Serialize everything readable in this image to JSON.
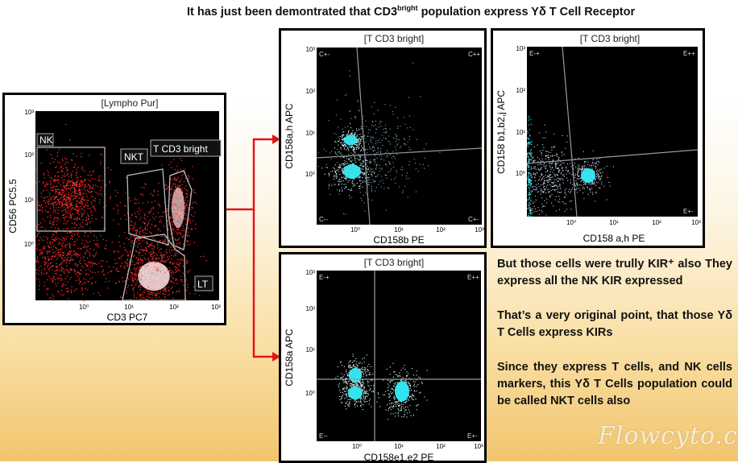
{
  "headline": {
    "pre": "It has just been demontrated that CD3",
    "sup": "bright",
    "post": " population express Yδ T Cell Receptor"
  },
  "plots": {
    "lympho": {
      "title": "[Lympho Pur]",
      "xlabel": "CD3 PC7",
      "ylabel": "CD56 PC5.5",
      "xticks": [
        "10⁰",
        "10¹",
        "10²",
        "10³"
      ],
      "yticks": [
        "10³",
        "10²",
        "10¹",
        "10⁰"
      ],
      "gates": {
        "nk": "NK",
        "nkt": "NKT",
        "tcd3": "T CD3 bright",
        "lt": "LT"
      }
    },
    "p1": {
      "title": "[T CD3 bright]",
      "xlabel": "CD158b PE",
      "ylabel": "CD158a,h APC",
      "xticks": [
        "10⁰",
        "10¹",
        "10²",
        "10³"
      ],
      "yticks": [
        "10³",
        "10²",
        "10¹",
        "10⁰"
      ],
      "quads": {
        "tl": "C+-",
        "tr": "C++",
        "bl": "C--",
        "br": "C+-"
      }
    },
    "p2": {
      "title": "[T CD3 bright]",
      "xlabel": "CD158 a,h PE",
      "ylabel": "CD158 b1,b2,j APC",
      "xticks": [
        "10⁰",
        "10¹",
        "10²",
        "10³"
      ],
      "yticks": [
        "10³",
        "10²",
        "10¹",
        "10⁰"
      ],
      "quads": {
        "tl": "E-+",
        "tr": "E++",
        "bl": "E--",
        "br": "E+-"
      }
    },
    "p3": {
      "title": "[T CD3 bright]",
      "xlabel": "CD158e1,e2 PE",
      "ylabel": "CD158a APC",
      "xticks": [
        "10⁰",
        "10¹",
        "10²",
        "10³"
      ],
      "yticks": [
        "10³",
        "10²",
        "10¹",
        "10⁰"
      ],
      "quads": {
        "tl": "E-+",
        "tr": "E++",
        "bl": "E--",
        "br": "E+-"
      }
    }
  },
  "text": {
    "para1": "But those cells were trully KIR⁺ also They express all the NK KIR expressed",
    "para2": "That’s a very original point, that those Yδ T Cells express KIRs",
    "para3": "Since they express T cells, and NK cells markers, this Yδ T Cells population could be called NKT cells also"
  },
  "watermark": "Flowcyto.cn",
  "colors": {
    "arrow": "#e0141c",
    "dots_red": "#ff2a2a",
    "dots_cyan": "#33e3ee"
  }
}
